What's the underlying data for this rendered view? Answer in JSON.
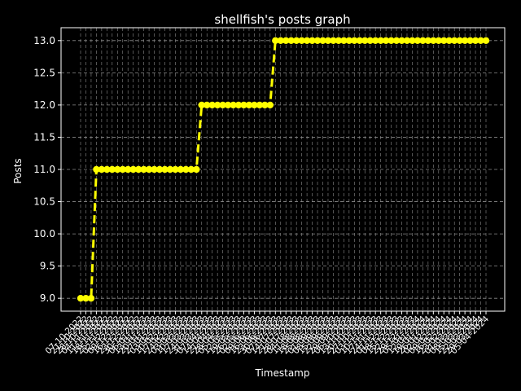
{
  "chart_data": {
    "type": "line",
    "title": "shellfish's posts graph",
    "xlabel": "Timestamp",
    "ylabel": "Posts",
    "ylim": [
      8.8,
      13.2
    ],
    "yticks": [
      "9.0",
      "9.5",
      "10.0",
      "10.5",
      "11.0",
      "11.5",
      "12.0",
      "12.5",
      "13.0"
    ],
    "grid": true,
    "colors": {
      "background": "#000000",
      "line": "#ffff00",
      "grid": "#8c8c8c",
      "axis": "#ffffff"
    },
    "x": [
      "07-10-2022",
      "21-10-2022",
      "28-10-2022",
      "04-11-2022",
      "11-11-2022",
      "18-11-2022",
      "25-11-2022",
      "02-12-2022",
      "09-12-2022",
      "16-12-2022",
      "23-12-2022",
      "30-12-2022",
      "06-01-2023",
      "13-01-2023",
      "20-01-2023",
      "27-01-2023",
      "03-02-2023",
      "10-02-2023",
      "17-02-2023",
      "24-02-2023",
      "03-03-2023",
      "10-03-2023",
      "17-03-2023",
      "24-03-2023",
      "31-03-2023",
      "07-04-2023",
      "14-04-2023",
      "21-04-2023",
      "28-04-2023",
      "05-05-2023",
      "12-05-2023",
      "19-05-2023",
      "26-05-2023",
      "02-06-2023",
      "09-06-2023",
      "16-06-2023",
      "23-06-2023",
      "30-06-2023",
      "07-07-2023",
      "14-07-2023",
      "21-07-2023",
      "28-07-2023",
      "04-08-2023",
      "11-08-2023",
      "18-08-2023",
      "25-08-2023",
      "01-09-2023",
      "08-09-2023",
      "15-09-2023",
      "22-09-2023",
      "29-09-2023",
      "06-10-2023",
      "13-10-2023",
      "20-10-2023",
      "27-10-2023",
      "03-11-2023",
      "10-11-2023",
      "17-11-2023",
      "24-11-2023",
      "01-12-2023",
      "08-12-2023",
      "15-12-2023",
      "22-12-2023",
      "29-12-2023",
      "05-01-2024",
      "12-01-2024",
      "19-01-2024",
      "26-01-2024",
      "02-02-2024",
      "09-02-2024",
      "16-02-2024",
      "23-02-2024",
      "01-03-2024",
      "08-03-2024",
      "15-03-2024",
      "22-03-2024",
      "29-03-2024",
      "05-04-2024"
    ],
    "series": [
      {
        "values": [
          9,
          9,
          9,
          11,
          11,
          11,
          11,
          11,
          11,
          11,
          11,
          11,
          11,
          11,
          11,
          11,
          11,
          11,
          11,
          11,
          11,
          11,
          11,
          12,
          12,
          12,
          12,
          12,
          12,
          12,
          12,
          12,
          12,
          12,
          12,
          12,
          12,
          13,
          13,
          13,
          13,
          13,
          13,
          13,
          13,
          13,
          13,
          13,
          13,
          13,
          13,
          13,
          13,
          13,
          13,
          13,
          13,
          13,
          13,
          13,
          13,
          13,
          13,
          13,
          13,
          13,
          13,
          13,
          13,
          13,
          13,
          13,
          13,
          13,
          13,
          13,
          13,
          13
        ]
      }
    ]
  }
}
